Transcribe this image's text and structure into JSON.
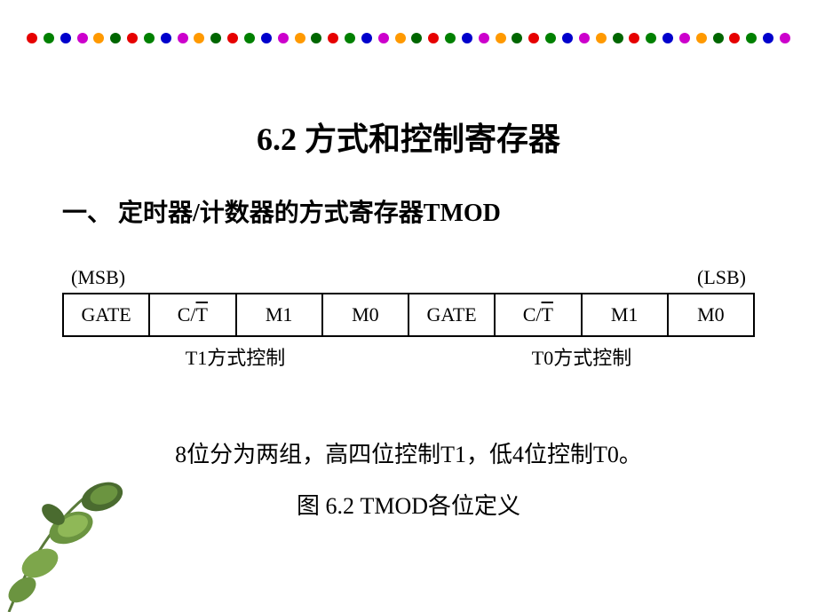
{
  "border": {
    "dot_count": 46,
    "colors": [
      "#e60000",
      "#008000",
      "#0000cc",
      "#cc00cc",
      "#ff9900",
      "#006600"
    ]
  },
  "title": "6.2 方式和控制寄存器",
  "subtitle": "一、 定时器/计数器的方式寄存器TMOD",
  "register": {
    "msb": "(MSB)",
    "lsb": "(LSB)",
    "bits": [
      {
        "label": "GATE",
        "overline": false
      },
      {
        "label_pre": "C/",
        "label_over": "T",
        "overline": true
      },
      {
        "label": "M1",
        "overline": false
      },
      {
        "label": "M0",
        "overline": false
      },
      {
        "label": "GATE",
        "overline": false
      },
      {
        "label_pre": "C/",
        "label_over": "T",
        "overline": true
      },
      {
        "label": "M1",
        "overline": false
      },
      {
        "label": "M0",
        "overline": false
      }
    ],
    "t1_label": "T1方式控制",
    "t0_label": "T0方式控制"
  },
  "description": "8位分为两组，高四位控制T1，低4位控制T0。",
  "caption": "图  6.2 TMOD各位定义",
  "leaf": {
    "stem_color": "#5a7a3a",
    "leaf_light": "#8fb857",
    "leaf_mid": "#6b9440",
    "leaf_dark": "#4a6b2f"
  }
}
